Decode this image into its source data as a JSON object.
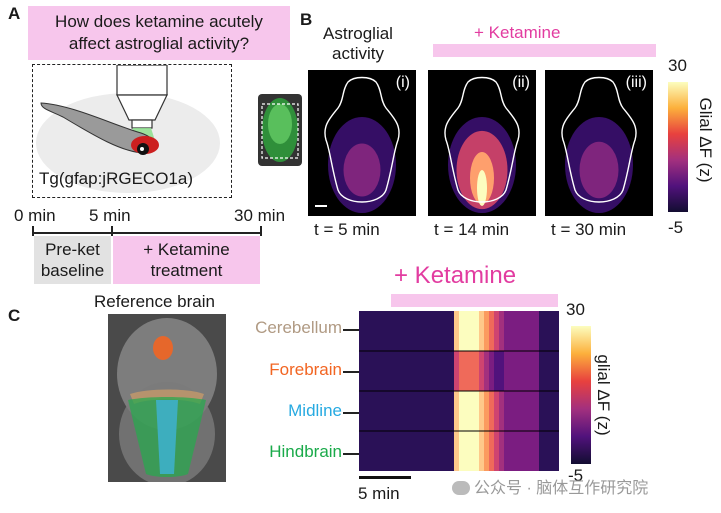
{
  "panel_a": {
    "letter": "A",
    "question_line1": "How does ketamine acutely",
    "question_line2": "affect astroglial activity?",
    "fish_label": "Tg(gfap:jRGECO1a)",
    "timeline": {
      "ticks": [
        "0 min",
        "5 min",
        "30 min"
      ],
      "baseline_line1": "Pre-ket",
      "baseline_line2": "baseline",
      "treatment_line1": "+ Ketamine",
      "treatment_line2": "treatment"
    },
    "colors": {
      "pink": "#f7c6ec",
      "gray": "#e2e2e2"
    }
  },
  "panel_b": {
    "letter": "B",
    "title_line1": "Astroglial",
    "title_line2": "activity",
    "ketamine_label": "+ Ketamine",
    "panels": [
      {
        "roman": "(i)",
        "time": "t = 5 min",
        "activity": 0.25
      },
      {
        "roman": "(ii)",
        "time": "t = 14 min",
        "activity": 0.95
      },
      {
        "roman": "(iii)",
        "time": "t = 30 min",
        "activity": 0.35
      }
    ],
    "colorbar": {
      "max": "30",
      "min": "-5",
      "label": "Glial ΔF (z)"
    }
  },
  "panel_c": {
    "letter": "C",
    "reference_title": "Reference brain",
    "ketamine_label": "+ Ketamine",
    "regions": [
      {
        "name": "Cerebellum",
        "color": "#b09a83"
      },
      {
        "name": "Forebrain",
        "color": "#f26522"
      },
      {
        "name": "Midline",
        "color": "#27aae1"
      },
      {
        "name": "Hindbrain",
        "color": "#1aaa4a"
      }
    ],
    "scale_label": "5 min",
    "colorbar": {
      "max": "30",
      "min": "-5",
      "label": "glial ΔF (z)"
    }
  },
  "watermark": "公众号 · 脑体互作研究院"
}
